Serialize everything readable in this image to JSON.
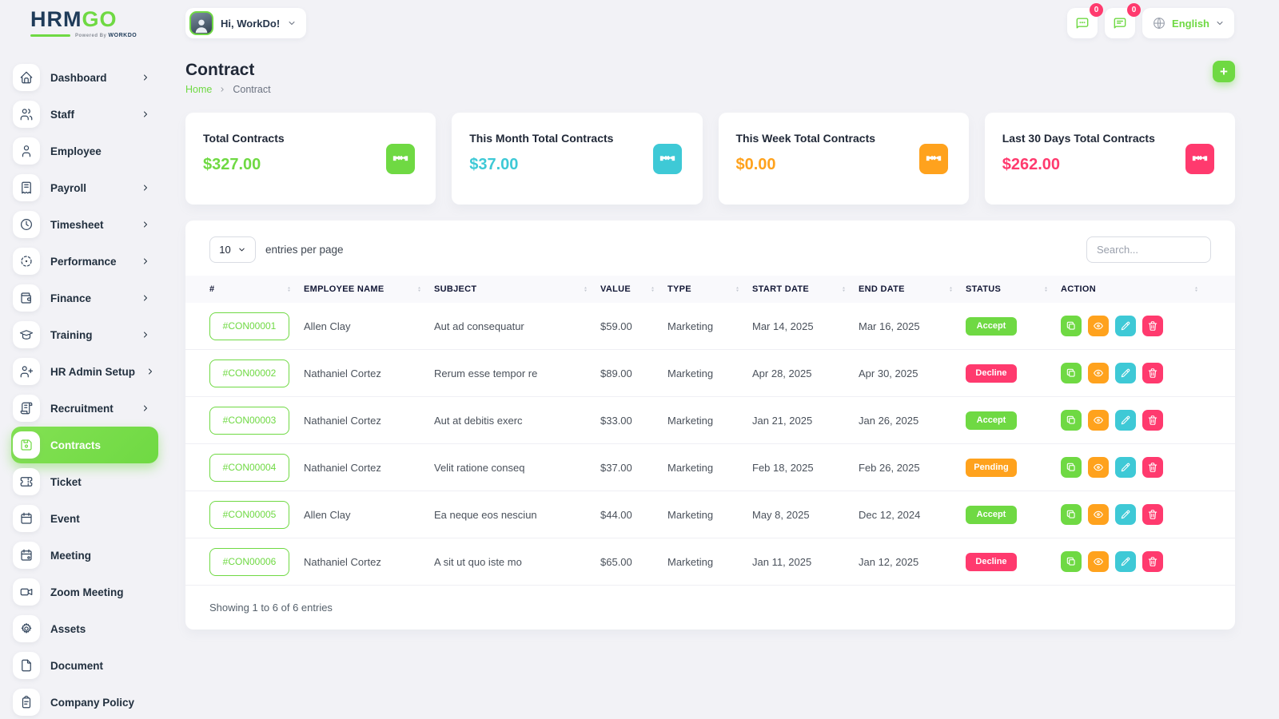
{
  "brand": {
    "name_primary": "HRM",
    "name_secondary": "GO",
    "powered_by_prefix": "Powered By",
    "powered_by_name": "WORKDO"
  },
  "topbar": {
    "greeting": "Hi, WorkDo!",
    "chat_badge": "0",
    "messages_badge": "0",
    "language": "English"
  },
  "sidebar": {
    "items": [
      {
        "label": "Dashboard",
        "icon": "home",
        "has_submenu": true,
        "active": false
      },
      {
        "label": "Staff",
        "icon": "users",
        "has_submenu": true,
        "active": false
      },
      {
        "label": "Employee",
        "icon": "user",
        "has_submenu": false,
        "active": false
      },
      {
        "label": "Payroll",
        "icon": "receipt",
        "has_submenu": true,
        "active": false
      },
      {
        "label": "Timesheet",
        "icon": "clock",
        "has_submenu": true,
        "active": false
      },
      {
        "label": "Performance",
        "icon": "focus",
        "has_submenu": true,
        "active": false
      },
      {
        "label": "Finance",
        "icon": "wallet",
        "has_submenu": true,
        "active": false
      },
      {
        "label": "Training",
        "icon": "school",
        "has_submenu": true,
        "active": false
      },
      {
        "label": "HR Admin Setup",
        "icon": "user-plus",
        "has_submenu": true,
        "active": false
      },
      {
        "label": "Recruitment",
        "icon": "license",
        "has_submenu": true,
        "active": false
      },
      {
        "label": "Contracts",
        "icon": "floppy",
        "has_submenu": false,
        "active": true
      },
      {
        "label": "Ticket",
        "icon": "ticket",
        "has_submenu": false,
        "active": false
      },
      {
        "label": "Event",
        "icon": "calendar",
        "has_submenu": false,
        "active": false
      },
      {
        "label": "Meeting",
        "icon": "calendar-dot",
        "has_submenu": false,
        "active": false
      },
      {
        "label": "Zoom Meeting",
        "icon": "video",
        "has_submenu": false,
        "active": false
      },
      {
        "label": "Assets",
        "icon": "gear",
        "has_submenu": false,
        "active": false
      },
      {
        "label": "Document",
        "icon": "file",
        "has_submenu": false,
        "active": false
      },
      {
        "label": "Company Policy",
        "icon": "clipboard",
        "has_submenu": false,
        "active": false
      }
    ]
  },
  "page": {
    "title": "Contract",
    "breadcrumb_home": "Home",
    "breadcrumb_current": "Contract",
    "add_button": "+"
  },
  "stats": [
    {
      "label": "Total Contracts",
      "value": "$327.00",
      "color": "#6fd943"
    },
    {
      "label": "This Month Total Contracts",
      "value": "$37.00",
      "color": "#3ec9d6"
    },
    {
      "label": "This Week Total Contracts",
      "value": "$0.00",
      "color": "#ffa21d"
    },
    {
      "label": "Last 30 Days Total Contracts",
      "value": "$262.00",
      "color": "#ff3a6e"
    }
  ],
  "table": {
    "entries_per_page": "10",
    "entries_label": "entries per page",
    "search_placeholder": "Search...",
    "columns": [
      "#",
      "EMPLOYEE NAME",
      "SUBJECT",
      "VALUE",
      "TYPE",
      "START DATE",
      "END DATE",
      "STATUS",
      "ACTION"
    ],
    "rows": [
      {
        "id": "#CON00001",
        "employee": "Allen Clay",
        "subject": "Aut ad consequatur",
        "value": "$59.00",
        "type": "Marketing",
        "start": "Mar 14, 2025",
        "end": "Mar 16, 2025",
        "status": "Accept",
        "status_color": "#6fd943"
      },
      {
        "id": "#CON00002",
        "employee": "Nathaniel Cortez",
        "subject": "Rerum esse tempor re",
        "value": "$89.00",
        "type": "Marketing",
        "start": "Apr 28, 2025",
        "end": "Apr 30, 2025",
        "status": "Decline",
        "status_color": "#ff3a6e"
      },
      {
        "id": "#CON00003",
        "employee": "Nathaniel Cortez",
        "subject": "Aut at debitis exerc",
        "value": "$33.00",
        "type": "Marketing",
        "start": "Jan 21, 2025",
        "end": "Jan 26, 2025",
        "status": "Accept",
        "status_color": "#6fd943"
      },
      {
        "id": "#CON00004",
        "employee": "Nathaniel Cortez",
        "subject": "Velit ratione conseq",
        "value": "$37.00",
        "type": "Marketing",
        "start": "Feb 18, 2025",
        "end": "Feb 26, 2025",
        "status": "Pending",
        "status_color": "#ffa21d"
      },
      {
        "id": "#CON00005",
        "employee": "Allen Clay",
        "subject": "Ea neque eos nesciun",
        "value": "$44.00",
        "type": "Marketing",
        "start": "May 8, 2025",
        "end": "Dec 12, 2024",
        "status": "Accept",
        "status_color": "#6fd943"
      },
      {
        "id": "#CON00006",
        "employee": "Nathaniel Cortez",
        "subject": "A sit ut quo iste mo",
        "value": "$65.00",
        "type": "Marketing",
        "start": "Jan 11, 2025",
        "end": "Jan 12, 2025",
        "status": "Decline",
        "status_color": "#ff3a6e"
      }
    ],
    "row_actions": [
      {
        "icon": "copy",
        "color": "#6fd943"
      },
      {
        "icon": "eye",
        "color": "#ffa21d"
      },
      {
        "icon": "pencil",
        "color": "#3ec9d6"
      },
      {
        "icon": "trash",
        "color": "#ff3a6e"
      }
    ],
    "footer": "Showing 1 to 6 of 6 entries"
  },
  "colors": {
    "primary": "#6fd943",
    "info": "#3ec9d6",
    "warning": "#ffa21d",
    "danger": "#ff3a6e",
    "navy": "#1f3b59",
    "background": "#f2f2f6"
  }
}
